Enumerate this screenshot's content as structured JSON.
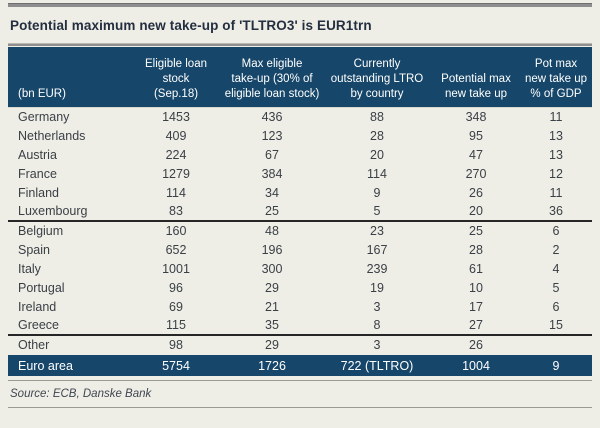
{
  "title": "Potential maximum new take-up of 'TLTRO3' is EUR1trn",
  "source": "Source: ECB, Danske Bank",
  "colors": {
    "navy": "#164669",
    "background": "#efeee6",
    "rule_gray": "#8e8e8e",
    "separator_dark": "#262626",
    "body_text": "#3a4047",
    "header_text": "#ffffff"
  },
  "chart_data": {
    "type": "table",
    "title": "Potential maximum new take-up of 'TLTRO3' is EUR1trn",
    "unit": "bn EUR",
    "columns": [
      {
        "label": "(bn EUR)"
      },
      {
        "label": "Eligible loan\nstock\n(Sep.18)"
      },
      {
        "label": "Max eligible\ntake-up (30% of\neligible loan stock)"
      },
      {
        "label": "Currently\noutstanding LTRO\nby country"
      },
      {
        "label": "Potential max\nnew take up"
      },
      {
        "label": "Pot max\nnew take up\n% of GDP"
      }
    ],
    "rows": [
      {
        "label": "Germany",
        "values": [
          "1453",
          "436",
          "88",
          "348",
          "11"
        ]
      },
      {
        "label": "Netherlands",
        "values": [
          "409",
          "123",
          "28",
          "95",
          "13"
        ]
      },
      {
        "label": "Austria",
        "values": [
          "224",
          "67",
          "20",
          "47",
          "13"
        ]
      },
      {
        "label": "France",
        "values": [
          "1279",
          "384",
          "114",
          "270",
          "12"
        ]
      },
      {
        "label": "Finland",
        "values": [
          "114",
          "34",
          "9",
          "26",
          "11"
        ]
      },
      {
        "label": "Luxembourg",
        "values": [
          "83",
          "25",
          "5",
          "20",
          "36"
        ]
      },
      {
        "label": "Belgium",
        "values": [
          "160",
          "48",
          "23",
          "25",
          "6"
        ]
      },
      {
        "label": "Spain",
        "values": [
          "652",
          "196",
          "167",
          "28",
          "2"
        ]
      },
      {
        "label": "Italy",
        "values": [
          "1001",
          "300",
          "239",
          "61",
          "4"
        ]
      },
      {
        "label": "Portugal",
        "values": [
          "96",
          "29",
          "19",
          "10",
          "5"
        ]
      },
      {
        "label": "Ireland",
        "values": [
          "69",
          "21",
          "3",
          "17",
          "6"
        ]
      },
      {
        "label": "Greece",
        "values": [
          "115",
          "35",
          "8",
          "27",
          "15"
        ]
      },
      {
        "label": "Other",
        "values": [
          "98",
          "29",
          "3",
          "26",
          ""
        ]
      }
    ],
    "total_row": {
      "label": "Euro area",
      "values": [
        "5754",
        "1726",
        "722 (TLTRO)",
        "1004",
        "9"
      ]
    },
    "source": "Source: ECB, Danske Bank"
  }
}
